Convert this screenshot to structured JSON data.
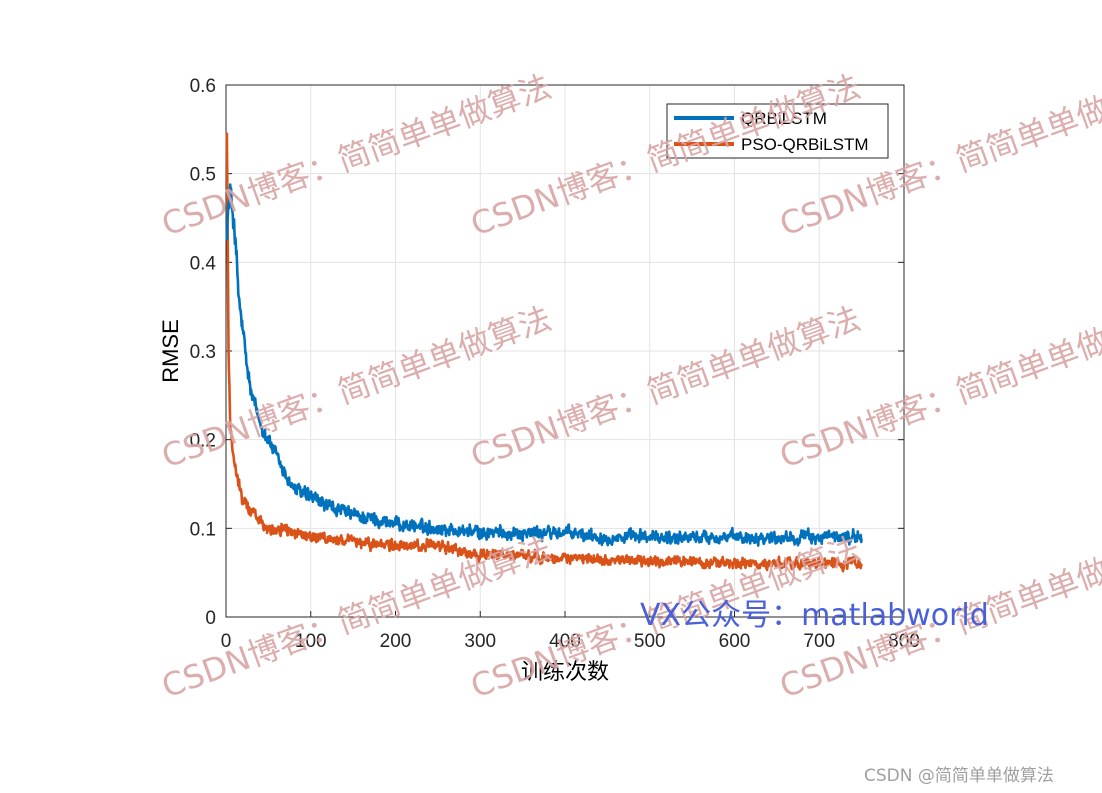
{
  "chart_data": {
    "type": "line",
    "xlabel": "训练次数",
    "ylabel": "RMSE",
    "xlim": [
      0,
      800
    ],
    "ylim": [
      0,
      0.6
    ],
    "xticks": [
      "0",
      "100",
      "200",
      "300",
      "400",
      "500",
      "600",
      "700",
      "800"
    ],
    "yticks": [
      "0",
      "0.1",
      "0.2",
      "0.3",
      "0.4",
      "0.5",
      "0.6"
    ],
    "grid": true,
    "legend_position": "top-right",
    "series": [
      {
        "name": "QRBiLSTM",
        "color": "#0072BD",
        "x": [
          1,
          5,
          10,
          15,
          20,
          25,
          30,
          40,
          50,
          60,
          70,
          80,
          100,
          120,
          150,
          200,
          250,
          300,
          350,
          400,
          450,
          500,
          550,
          600,
          650,
          700,
          740,
          750
        ],
        "y": [
          0.44,
          0.48,
          0.44,
          0.36,
          0.32,
          0.28,
          0.25,
          0.22,
          0.2,
          0.18,
          0.16,
          0.145,
          0.135,
          0.125,
          0.115,
          0.105,
          0.1,
          0.095,
          0.095,
          0.095,
          0.09,
          0.09,
          0.09,
          0.09,
          0.09,
          0.09,
          0.09,
          0.09
        ]
      },
      {
        "name": "PSO-QRBiLSTM",
        "color": "#D95319",
        "x": [
          1,
          3,
          5,
          8,
          10,
          15,
          20,
          30,
          40,
          50,
          60,
          80,
          100,
          150,
          200,
          250,
          300,
          350,
          400,
          450,
          500,
          550,
          600,
          650,
          700,
          740,
          750
        ],
        "y": [
          0.55,
          0.3,
          0.22,
          0.19,
          0.17,
          0.15,
          0.13,
          0.12,
          0.11,
          0.1,
          0.1,
          0.095,
          0.09,
          0.085,
          0.08,
          0.08,
          0.07,
          0.07,
          0.065,
          0.065,
          0.063,
          0.062,
          0.06,
          0.06,
          0.06,
          0.06,
          0.058
        ]
      }
    ]
  },
  "watermarks": {
    "csdn": "CSDN博客：简简单单做算法",
    "vx": "VX公众号：matlabworld",
    "credit": "CSDN @简简单单做算法"
  }
}
